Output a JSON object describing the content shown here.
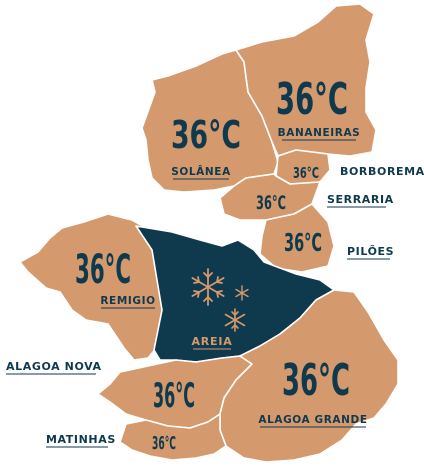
{
  "colors": {
    "region_fill": "#d4996d",
    "highlight_fill": "#0f3a4e",
    "text": "#0f3a4e",
    "snow_icon": "#d4996d",
    "border": "#ffffff"
  },
  "regions": {
    "solanea": {
      "name": "SOLÂNEA",
      "temp": "36°C"
    },
    "bananeiras": {
      "name": "BANANEIRAS",
      "temp": "36°C"
    },
    "borborema": {
      "name": "BORBOREMA",
      "temp": "36°C"
    },
    "serraria": {
      "name": "SERRARIA",
      "temp": "36°C"
    },
    "piloes": {
      "name": "PILÕES",
      "temp": "36°C"
    },
    "remigio": {
      "name": "REMIGIO",
      "temp": "36°C"
    },
    "areia": {
      "name": "AREIA",
      "icon": "snowflake-icon"
    },
    "alagoa_nova": {
      "name": "ALAGOA NOVA",
      "temp": "36°C"
    },
    "alagoa_grande": {
      "name": "ALAGOA GRANDE",
      "temp": "36°C"
    },
    "matinhas": {
      "name": "MATINHAS",
      "temp": "36°C"
    }
  }
}
